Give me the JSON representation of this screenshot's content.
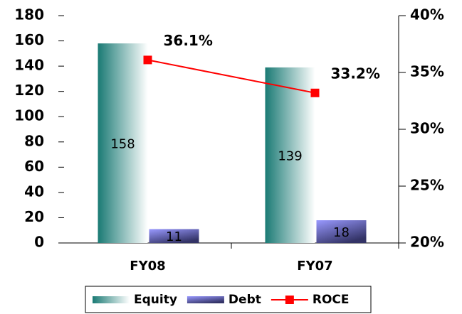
{
  "chart_data": {
    "type": "bar",
    "categories": [
      "FY08",
      "FY07"
    ],
    "series": [
      {
        "name": "Equity",
        "type": "bar",
        "color": "#1a7a74",
        "values": [
          158,
          139
        ]
      },
      {
        "name": "Debt",
        "type": "bar",
        "color": "#9999ff",
        "values": [
          11,
          18
        ]
      },
      {
        "name": "ROCE",
        "type": "line",
        "axis": "y2",
        "color": "#ff0000",
        "values": [
          36.1,
          33.2
        ],
        "value_labels": [
          "36.1%",
          "33.2%"
        ]
      }
    ],
    "ylim": [
      0,
      180
    ],
    "yticks": [
      0,
      20,
      40,
      60,
      80,
      100,
      120,
      140,
      160,
      180
    ],
    "y2lim": [
      20,
      40
    ],
    "y2ticks": [
      {
        "value": 20,
        "label": "20%"
      },
      {
        "value": 25,
        "label": "25%"
      },
      {
        "value": 30,
        "label": "30%"
      },
      {
        "value": 35,
        "label": "35%"
      },
      {
        "value": 40,
        "label": "40%"
      }
    ],
    "legend": "bottom"
  }
}
